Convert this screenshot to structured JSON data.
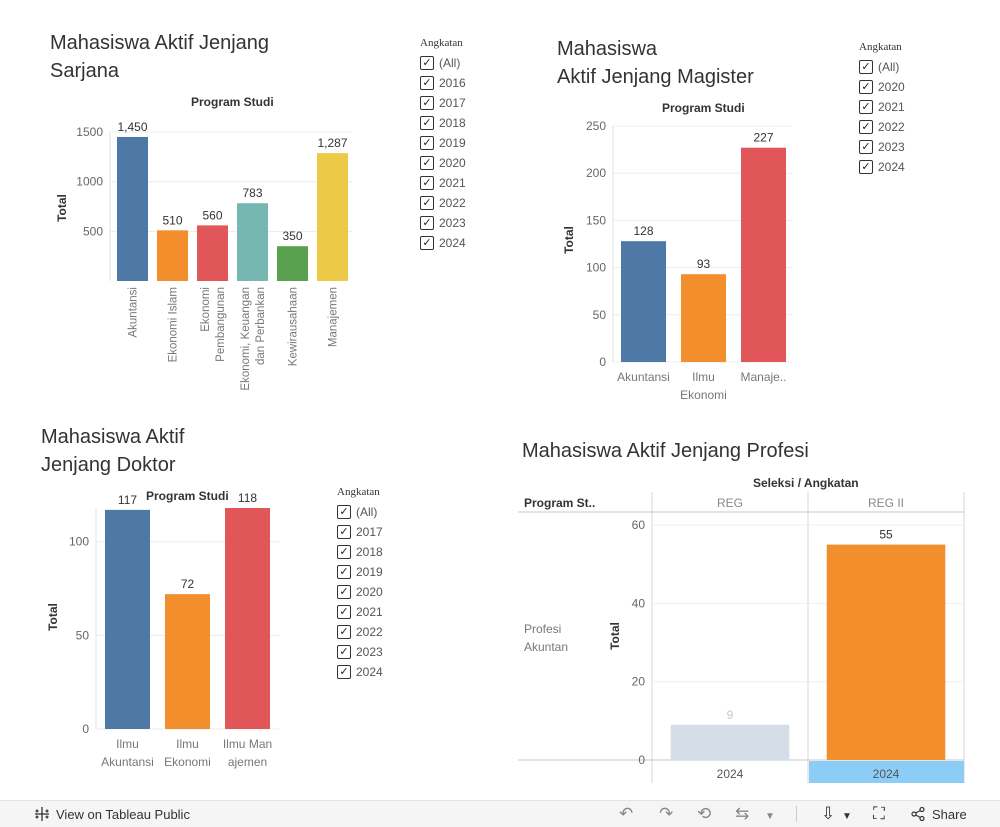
{
  "legend_title": "Angkatan",
  "all_label": "(All)",
  "panels": {
    "sarjana": {
      "title_line1": "Mahasiswa Aktif Jenjang",
      "title_line2": "Sarjana",
      "legend_years": [
        "2016",
        "2017",
        "2018",
        "2019",
        "2020",
        "2021",
        "2022",
        "2023",
        "2024"
      ]
    },
    "magister": {
      "title_line1": "Mahasiswa",
      "title_line2": "Aktif Jenjang Magister",
      "legend_years": [
        "2020",
        "2021",
        "2022",
        "2023",
        "2024"
      ]
    },
    "doktor": {
      "title_line1": "Mahasiswa Aktif",
      "title_line2": "Jenjang Doktor",
      "legend_years": [
        "2017",
        "2018",
        "2019",
        "2020",
        "2021",
        "2022",
        "2023",
        "2024"
      ]
    },
    "profesi": {
      "title": "Mahasiswa Aktif Jenjang Profesi",
      "header": "Seleksi / Angkatan",
      "row_header": "Program St..",
      "row_label_line1": "Profesi",
      "row_label_line2": "Akuntan"
    }
  },
  "chart_data": [
    {
      "id": "sarjana",
      "type": "bar",
      "title": "Program Studi",
      "ylabel": "Total",
      "categories": [
        [
          "Akuntansi"
        ],
        [
          "Ekonomi Islam"
        ],
        [
          "Ekonomi",
          "Pembangunan"
        ],
        [
          "Ekonomi, Keuangan",
          "dan Perbankan"
        ],
        [
          "Kewirausahaan"
        ],
        [
          "Manajemen"
        ]
      ],
      "values": [
        1450,
        510,
        560,
        783,
        350,
        1287
      ],
      "value_labels": [
        "1,450",
        "510",
        "560",
        "783",
        "350",
        "1,287"
      ],
      "colors": [
        "#4e79a7",
        "#f28e2b",
        "#e15759",
        "#76b7b2",
        "#59a14f",
        "#edc948"
      ],
      "yticks": [
        500,
        1000,
        1500
      ],
      "ylim": [
        0,
        1500
      ]
    },
    {
      "id": "magister",
      "type": "bar",
      "title": "Program Studi",
      "ylabel": "Total",
      "categories": [
        [
          "Akuntansi"
        ],
        [
          "Ilmu",
          "Ekonomi"
        ],
        [
          "Manaje.."
        ]
      ],
      "values": [
        128,
        93,
        227
      ],
      "value_labels": [
        "128",
        "93",
        "227"
      ],
      "colors": [
        "#4e79a7",
        "#f28e2b",
        "#e15759"
      ],
      "yticks": [
        0,
        50,
        100,
        150,
        200,
        250
      ],
      "ylim": [
        0,
        250
      ]
    },
    {
      "id": "doktor",
      "type": "bar",
      "title": "Program Studi",
      "ylabel": "Total",
      "categories": [
        [
          "Ilmu",
          "Akuntansi"
        ],
        [
          "Ilmu",
          "Ekonomi"
        ],
        [
          "Ilmu Man",
          "ajemen"
        ]
      ],
      "values": [
        117,
        72,
        118
      ],
      "value_labels": [
        "117",
        "72",
        "118"
      ],
      "colors": [
        "#4e79a7",
        "#f28e2b",
        "#e15759"
      ],
      "yticks": [
        0,
        50,
        100
      ],
      "ylim": [
        0,
        118
      ]
    },
    {
      "id": "profesi",
      "type": "bar",
      "title": "Seleksi / Angkatan",
      "ylabel": "Total",
      "columns": [
        "REG",
        "REG II"
      ],
      "x_labels": [
        "2024",
        "2024"
      ],
      "values": [
        9,
        55
      ],
      "value_labels": [
        "9",
        "55"
      ],
      "colors": [
        "#d5dde6",
        "#f28e2b"
      ],
      "yticks": [
        0,
        20,
        40,
        60
      ],
      "ylim": [
        0,
        60
      ]
    }
  ],
  "footer": {
    "view_label": "View on Tableau Public",
    "share_label": "Share"
  }
}
